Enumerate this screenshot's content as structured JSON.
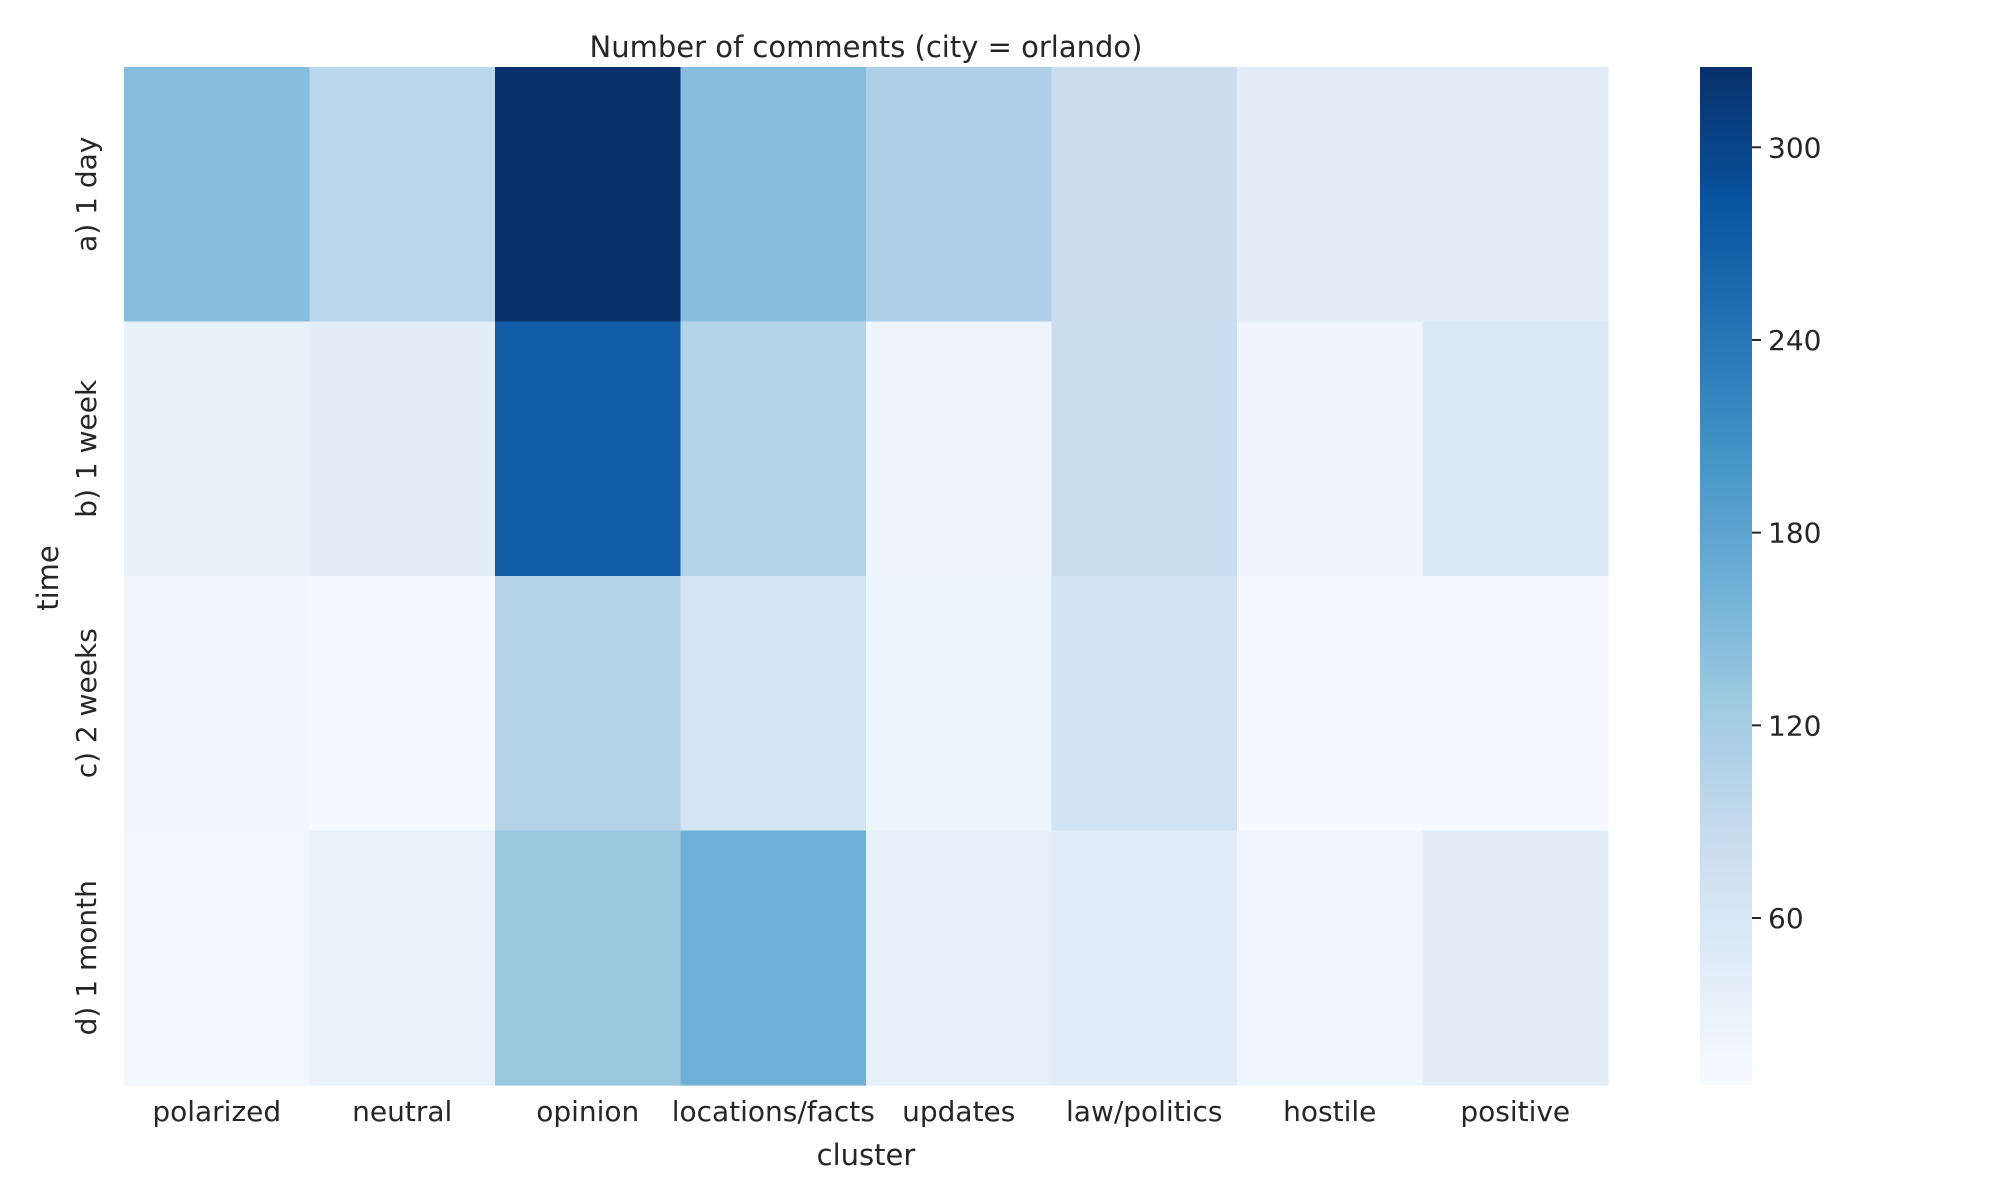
{
  "chart_data": {
    "type": "heatmap",
    "title": "Number of comments (city = orlando)",
    "xlabel": "cluster",
    "ylabel": "time",
    "x_categories": [
      "polarized",
      "neutral",
      "opinion",
      "locations/facts",
      "updates",
      "law/politics",
      "hostile",
      "positive"
    ],
    "y_categories": [
      "a) 1 day",
      "b) 1 week",
      "c) 2 weeks",
      "d) 1 month"
    ],
    "values": [
      [
        145,
        100,
        325,
        145,
        110,
        80,
        40,
        40
      ],
      [
        33,
        40,
        270,
        107,
        23,
        83,
        23,
        55
      ],
      [
        20,
        10,
        105,
        65,
        25,
        68,
        10,
        10
      ],
      [
        18,
        30,
        130,
        165,
        35,
        45,
        20,
        40
      ]
    ],
    "colorbar": {
      "min": 8,
      "max": 325,
      "ticks": [
        60,
        120,
        180,
        240,
        300
      ],
      "colormap": "Blues",
      "light": "#f7fbff",
      "dark": "#08306b"
    },
    "grid": false,
    "legend": "colorbar-right"
  }
}
